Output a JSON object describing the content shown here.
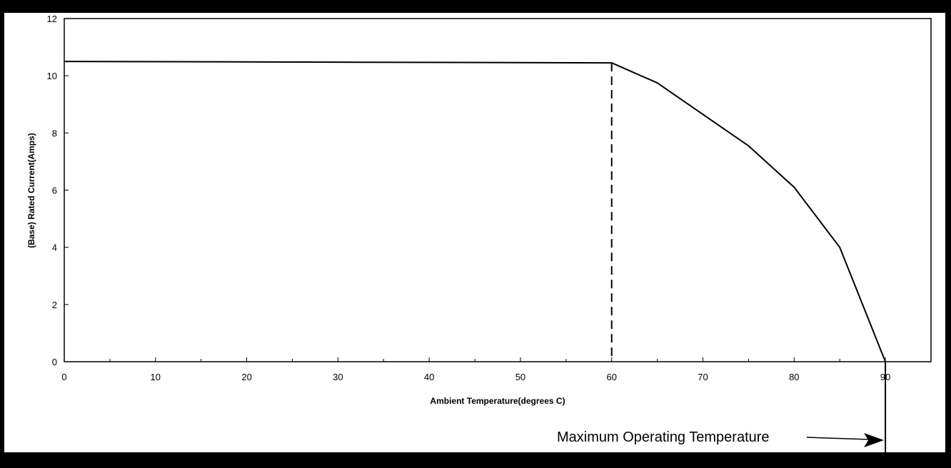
{
  "chart_data": {
    "type": "line",
    "title": "",
    "xlabel": "Ambient Temperature(degrees C)",
    "ylabel": "(Base) Rated Current(Amps)",
    "xlim": [
      0,
      95
    ],
    "ylim": [
      0,
      12
    ],
    "x_ticks": [
      0,
      10,
      20,
      30,
      40,
      50,
      60,
      70,
      80,
      90
    ],
    "y_ticks": [
      0,
      2,
      4,
      6,
      8,
      10,
      12
    ],
    "x_tick_labels": [
      "0",
      "10",
      "20",
      "30",
      "40",
      "50",
      "60",
      "70",
      "80",
      "90"
    ],
    "y_tick_labels": [
      "0",
      "2",
      "4",
      "6",
      "8",
      "10",
      "12"
    ],
    "grid": false,
    "series": [
      {
        "x": [
          0,
          60,
          65,
          70,
          75,
          80,
          85,
          90
        ],
        "y": [
          10.5,
          10.45,
          9.75,
          8.65,
          7.55,
          6.1,
          4.0,
          0
        ]
      }
    ],
    "reference_lines": [
      {
        "axis": "x",
        "value": 60,
        "style": "dashed"
      }
    ],
    "annotations": [
      {
        "text": "Maximum Operating Temperature",
        "points_to_x": 90
      }
    ]
  },
  "colors": {
    "line": "#000000",
    "background": "#ffffff",
    "scan_border": "#000000"
  }
}
